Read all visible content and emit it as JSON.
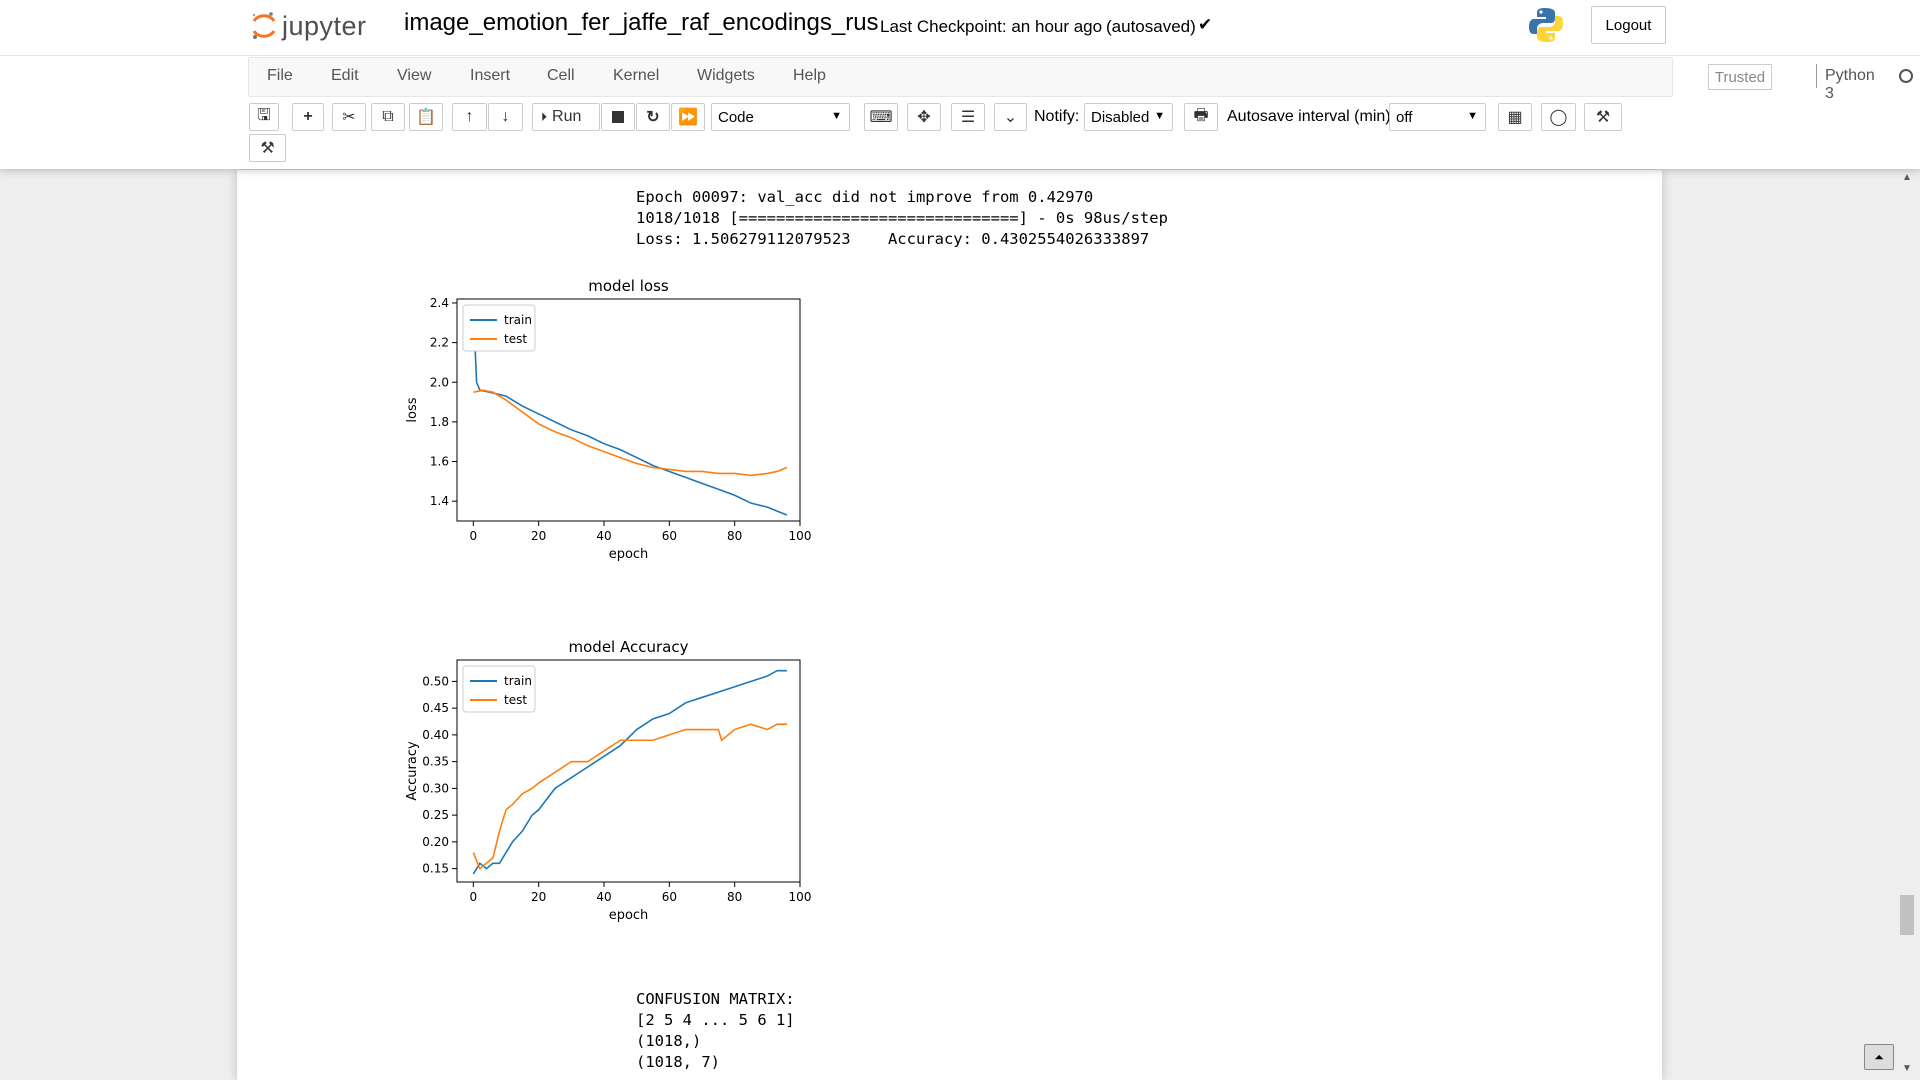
{
  "header": {
    "logo_text": "jupyter",
    "notebook_name": "image_emotion_fer_jaffe_raf_encodings_rus",
    "checkpoint": "Last Checkpoint: an hour ago",
    "autosave_status": "(autosaved)",
    "logout_label": "Logout"
  },
  "menubar": {
    "items": [
      "File",
      "Edit",
      "View",
      "Insert",
      "Cell",
      "Kernel",
      "Widgets",
      "Help"
    ],
    "trusted_label": "Trusted",
    "kernel_name": "Python 3"
  },
  "toolbar": {
    "run_label": "Run",
    "cell_type": "Code",
    "notify_label": "Notify:",
    "notify_value": "Disabled",
    "autosave_label": "Autosave interval (min):",
    "autosave_value": "off"
  },
  "output": {
    "line1": "Epoch 00097: val_acc did not improve from 0.42970",
    "line2": "1018/1018 [==============================] - 0s 98us/step",
    "line3": "Loss: 1.506279112079523    Accuracy: 0.4302554026333897",
    "confusion_title": "CONFUSION MATRIX:",
    "confusion_line1": "[2 5 4 ... 5 6 1]",
    "confusion_line2": "(1018,)",
    "confusion_line3": "(1018, 7)"
  },
  "colors": {
    "train": "#1f77b4",
    "test": "#ff7f0e",
    "jupyter_orange": "#f37726"
  },
  "chart_data": [
    {
      "type": "line",
      "title": "model loss",
      "xlabel": "epoch",
      "ylabel": "loss",
      "xlim": [
        -5,
        100
      ],
      "ylim": [
        1.3,
        2.42
      ],
      "xticks": [
        0,
        20,
        40,
        60,
        80,
        100
      ],
      "yticks": [
        1.4,
        1.6,
        1.8,
        2.0,
        2.2,
        2.4
      ],
      "ytick_decimals": 1,
      "legend_position": "upper-left",
      "series": [
        {
          "name": "train",
          "color": "#1f77b4",
          "x": [
            0,
            1,
            2,
            5,
            10,
            15,
            20,
            25,
            30,
            35,
            40,
            45,
            50,
            55,
            60,
            65,
            70,
            75,
            80,
            85,
            90,
            93,
            96
          ],
          "y": [
            2.38,
            2.0,
            1.96,
            1.95,
            1.93,
            1.88,
            1.84,
            1.8,
            1.76,
            1.73,
            1.69,
            1.66,
            1.62,
            1.58,
            1.55,
            1.52,
            1.49,
            1.46,
            1.43,
            1.39,
            1.37,
            1.35,
            1.33
          ]
        },
        {
          "name": "test",
          "color": "#ff7f0e",
          "x": [
            0,
            3,
            6,
            10,
            15,
            20,
            25,
            30,
            35,
            40,
            45,
            50,
            55,
            60,
            65,
            70,
            75,
            80,
            85,
            90,
            93,
            96
          ],
          "y": [
            1.95,
            1.96,
            1.95,
            1.91,
            1.85,
            1.79,
            1.75,
            1.72,
            1.68,
            1.65,
            1.62,
            1.59,
            1.57,
            1.56,
            1.55,
            1.55,
            1.54,
            1.54,
            1.53,
            1.54,
            1.55,
            1.57
          ]
        }
      ]
    },
    {
      "type": "line",
      "title": "model Accuracy",
      "xlabel": "epoch",
      "ylabel": "Accuracy",
      "xlim": [
        -5,
        100
      ],
      "ylim": [
        0.125,
        0.54
      ],
      "xticks": [
        0,
        20,
        40,
        60,
        80,
        100
      ],
      "yticks": [
        0.15,
        0.2,
        0.25,
        0.3,
        0.35,
        0.4,
        0.45,
        0.5
      ],
      "ytick_decimals": 2,
      "legend_position": "upper-left",
      "series": [
        {
          "name": "train",
          "color": "#1f77b4",
          "x": [
            0,
            2,
            4,
            6,
            8,
            10,
            12,
            15,
            18,
            20,
            25,
            30,
            35,
            40,
            45,
            50,
            55,
            60,
            65,
            70,
            75,
            80,
            85,
            90,
            93,
            96
          ],
          "y": [
            0.14,
            0.16,
            0.15,
            0.16,
            0.16,
            0.18,
            0.2,
            0.22,
            0.25,
            0.26,
            0.3,
            0.32,
            0.34,
            0.36,
            0.38,
            0.41,
            0.43,
            0.44,
            0.46,
            0.47,
            0.48,
            0.49,
            0.5,
            0.51,
            0.52,
            0.52
          ]
        },
        {
          "name": "test",
          "color": "#ff7f0e",
          "x": [
            0,
            2,
            4,
            6,
            8,
            10,
            12,
            15,
            18,
            20,
            25,
            30,
            35,
            40,
            45,
            50,
            55,
            60,
            65,
            70,
            75,
            76,
            80,
            85,
            90,
            93,
            96
          ],
          "y": [
            0.18,
            0.15,
            0.16,
            0.17,
            0.22,
            0.26,
            0.27,
            0.29,
            0.3,
            0.31,
            0.33,
            0.35,
            0.35,
            0.37,
            0.39,
            0.39,
            0.39,
            0.4,
            0.41,
            0.41,
            0.41,
            0.39,
            0.41,
            0.42,
            0.41,
            0.42,
            0.42
          ]
        }
      ]
    }
  ]
}
